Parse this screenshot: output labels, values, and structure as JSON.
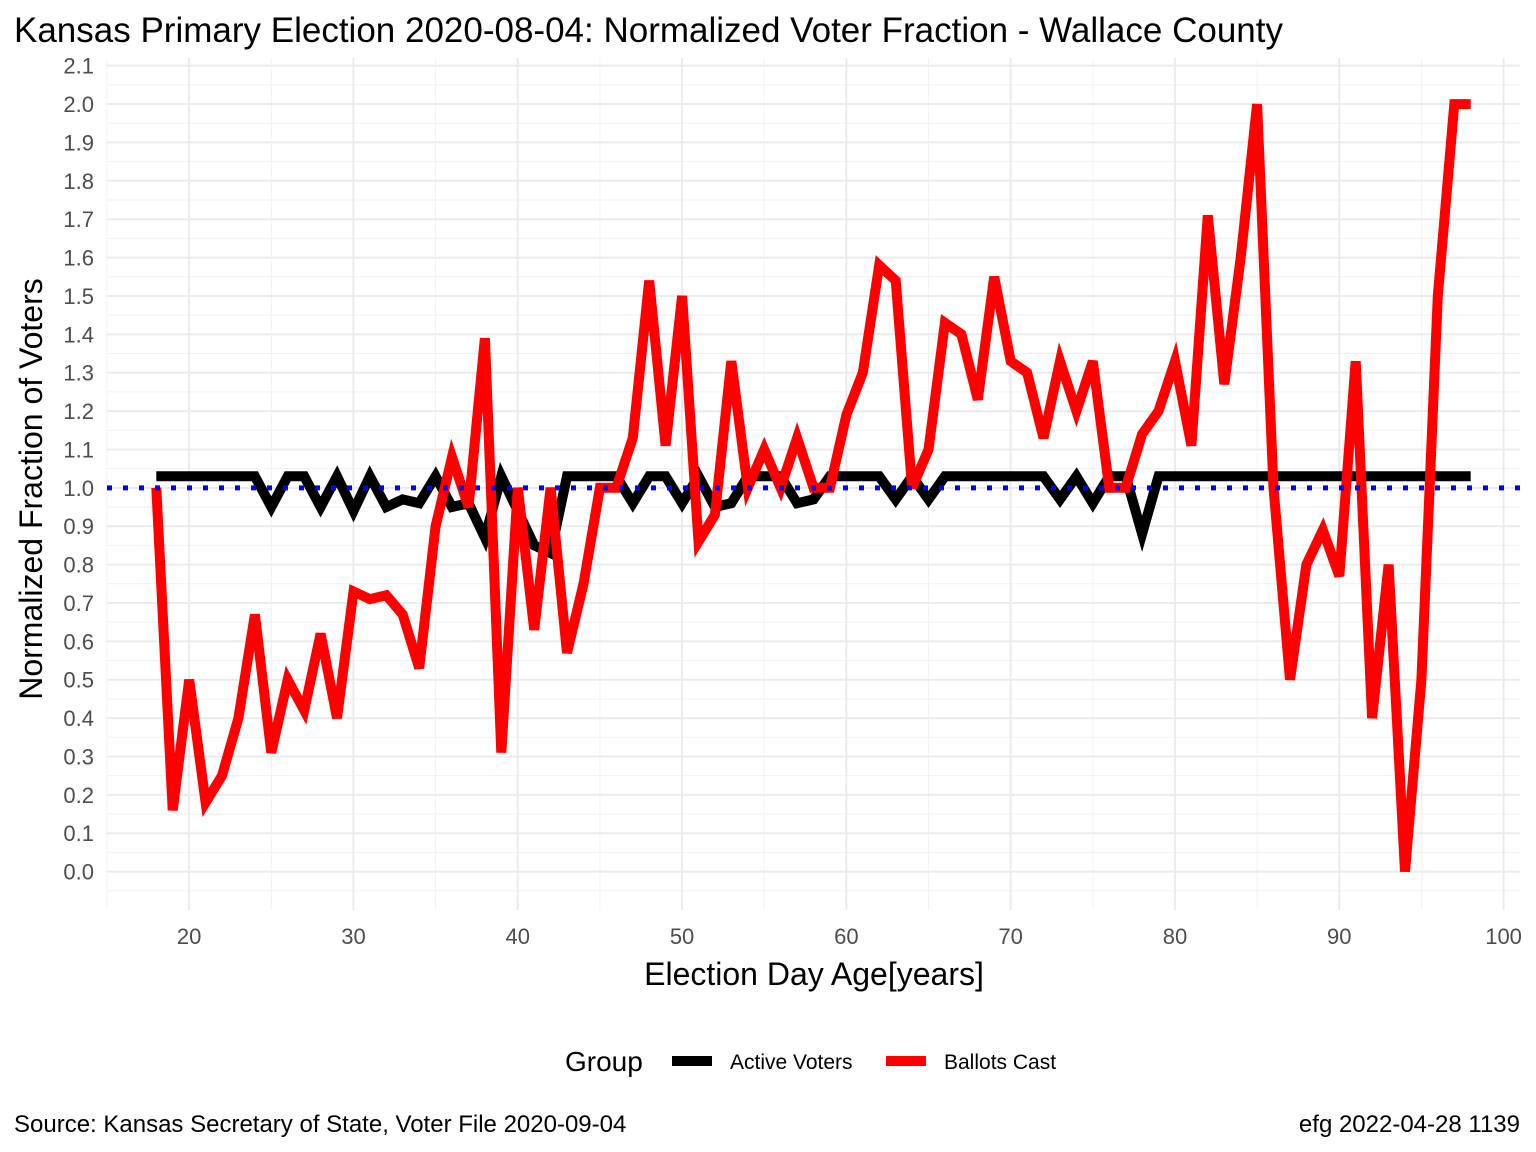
{
  "chart_data": {
    "type": "line",
    "title": "Kansas Primary Election 2020-08-04:  Normalized Voter Fraction - Wallace County",
    "xlabel": "Election Day Age[years]",
    "ylabel": "Normalized Fraction of Voters",
    "xlim": [
      15,
      101
    ],
    "ylim": [
      -0.1,
      2.12
    ],
    "xticks": [
      20,
      30,
      40,
      50,
      60,
      70,
      80,
      90,
      100
    ],
    "yticks": [
      "0.0",
      "0.1",
      "0.2",
      "0.3",
      "0.4",
      "0.5",
      "0.6",
      "0.7",
      "0.8",
      "0.9",
      "1.0",
      "1.1",
      "1.2",
      "1.3",
      "1.4",
      "1.5",
      "1.6",
      "1.7",
      "1.8",
      "1.9",
      "2.0",
      "2.1"
    ],
    "grid": true,
    "reference_line": {
      "y": 1.0,
      "color": "#0000ff",
      "style": "dotted"
    },
    "legend": {
      "title": "Group",
      "position": "bottom"
    },
    "x": [
      18,
      19,
      20,
      21,
      22,
      23,
      24,
      25,
      26,
      27,
      28,
      29,
      30,
      31,
      32,
      33,
      34,
      35,
      36,
      37,
      38,
      39,
      40,
      41,
      42,
      43,
      44,
      45,
      46,
      47,
      48,
      49,
      50,
      51,
      52,
      53,
      54,
      55,
      56,
      57,
      58,
      59,
      60,
      61,
      62,
      63,
      64,
      65,
      66,
      67,
      68,
      69,
      70,
      71,
      72,
      73,
      74,
      75,
      76,
      77,
      78,
      79,
      80,
      81,
      82,
      83,
      84,
      85,
      86,
      87,
      88,
      89,
      90,
      91,
      92,
      93,
      94,
      95,
      96,
      97,
      98
    ],
    "series": [
      {
        "name": "Active Voters",
        "color": "#000000",
        "values": [
          1.03,
          1.03,
          1.03,
          1.03,
          1.03,
          1.03,
          1.03,
          0.95,
          1.03,
          1.03,
          0.95,
          1.03,
          0.94,
          1.03,
          0.95,
          0.97,
          0.96,
          1.03,
          0.95,
          0.96,
          0.87,
          1.03,
          0.94,
          0.85,
          0.83,
          1.03,
          1.03,
          1.03,
          1.03,
          0.96,
          1.03,
          1.03,
          0.96,
          1.03,
          0.95,
          0.96,
          1.03,
          1.03,
          1.03,
          0.96,
          0.97,
          1.03,
          1.03,
          1.03,
          1.03,
          0.97,
          1.03,
          0.97,
          1.03,
          1.03,
          1.03,
          1.03,
          1.03,
          1.03,
          1.03,
          0.97,
          1.03,
          0.96,
          1.03,
          1.03,
          0.88,
          1.03,
          1.03,
          1.03,
          1.03,
          1.03,
          1.03,
          1.03,
          1.03,
          1.03,
          1.03,
          1.03,
          1.03,
          1.03,
          1.03,
          1.03,
          1.03,
          1.03,
          1.03,
          1.03,
          1.03
        ]
      },
      {
        "name": "Ballots Cast",
        "color": "#ff0000",
        "values": [
          1.0,
          0.16,
          0.5,
          0.18,
          0.25,
          0.4,
          0.67,
          0.31,
          0.5,
          0.42,
          0.62,
          0.4,
          0.73,
          0.71,
          0.72,
          0.67,
          0.53,
          0.9,
          1.08,
          0.95,
          1.39,
          0.31,
          1.0,
          0.63,
          1.0,
          0.57,
          0.75,
          1.0,
          1.0,
          1.13,
          1.54,
          1.11,
          1.5,
          0.86,
          0.93,
          1.33,
          1.0,
          1.1,
          1.0,
          1.13,
          1.0,
          1.0,
          1.19,
          1.3,
          1.58,
          1.54,
          1.0,
          1.1,
          1.43,
          1.4,
          1.23,
          1.55,
          1.33,
          1.3,
          1.13,
          1.33,
          1.2,
          1.33,
          1.0,
          1.0,
          1.14,
          1.2,
          1.33,
          1.11,
          1.71,
          1.27,
          1.6,
          2.0,
          1.0,
          0.5,
          0.8,
          0.89,
          0.77,
          1.33,
          0.4,
          0.8,
          0.0,
          0.5,
          1.5,
          2.0,
          2.0
        ]
      }
    ]
  },
  "caption": {
    "source": "Source:  Kansas Secretary of State, Voter File  2020-09-04",
    "credit": "efg 2022-04-28 1139"
  }
}
